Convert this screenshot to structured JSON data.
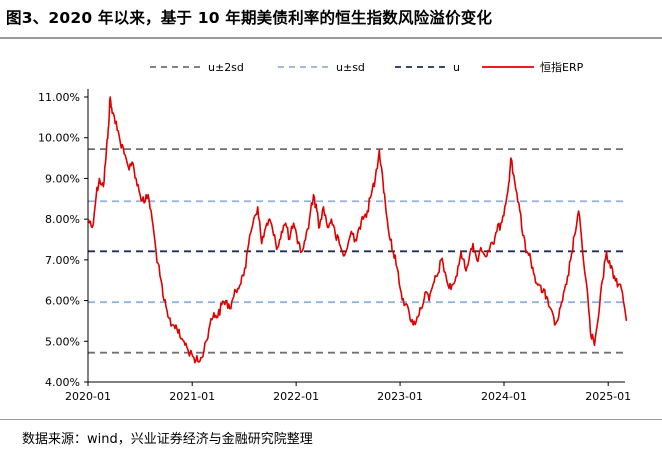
{
  "title": "图3、2020 年以来，基于 10 年期美债利率的恒生指数风险溢价变化",
  "source": "数据来源：wind，兴业证券经济与金融研究院整理",
  "colors": {
    "erp": "#e00000",
    "mean": "#1a2f5a",
    "sd1": "#8fb2e0",
    "sd2": "#707070"
  },
  "chart_data": {
    "type": "line",
    "title": "图3、2020 年以来，基于 10 年期美债利率的恒生指数风险溢价变化",
    "xlabel": "",
    "ylabel": "",
    "ylim": [
      4.0,
      11.0
    ],
    "xlim": [
      "2020-01",
      "2025-03"
    ],
    "yticks": [
      "4.00%",
      "5.00%",
      "6.00%",
      "7.00%",
      "8.00%",
      "9.00%",
      "10.00%",
      "11.00%"
    ],
    "xticks": [
      "2020-01",
      "2021-01",
      "2022-01",
      "2023-01",
      "2024-01",
      "2025-01"
    ],
    "legend_position": "top",
    "grid": false,
    "series": [
      {
        "name": "u±2sd",
        "style": "dashed",
        "color": "#707070",
        "values": [
          9.72,
          4.72
        ]
      },
      {
        "name": "u±sd",
        "style": "dashed",
        "color": "#8fb2e0",
        "values": [
          8.44,
          5.96
        ]
      },
      {
        "name": "u",
        "style": "dashed",
        "color": "#1a2f5a",
        "values": [
          7.21
        ]
      },
      {
        "name": "恒指ERP",
        "style": "solid",
        "color": "#e00000",
        "x": [
          "2020-01-02",
          "2020-01-16",
          "2020-01-30",
          "2020-02-10",
          "2020-02-24",
          "2020-03-05",
          "2020-03-12",
          "2020-03-19",
          "2020-03-26",
          "2020-04-09",
          "2020-04-23",
          "2020-05-07",
          "2020-05-21",
          "2020-06-04",
          "2020-06-18",
          "2020-07-02",
          "2020-07-16",
          "2020-07-30",
          "2020-08-13",
          "2020-08-27",
          "2020-09-10",
          "2020-09-24",
          "2020-10-08",
          "2020-10-22",
          "2020-11-05",
          "2020-11-19",
          "2020-12-03",
          "2020-12-17",
          "2021-01-07",
          "2021-01-21",
          "2021-02-04",
          "2021-02-18",
          "2021-03-04",
          "2021-03-18",
          "2021-04-01",
          "2021-04-15",
          "2021-04-29",
          "2021-05-13",
          "2021-05-27",
          "2021-06-10",
          "2021-06-24",
          "2021-07-08",
          "2021-07-22",
          "2021-08-05",
          "2021-08-19",
          "2021-09-02",
          "2021-09-16",
          "2021-09-30",
          "2021-10-14",
          "2021-10-28",
          "2021-11-11",
          "2021-11-25",
          "2021-12-09",
          "2021-12-23",
          "2022-01-06",
          "2022-01-20",
          "2022-02-03",
          "2022-02-17",
          "2022-03-03",
          "2022-03-15",
          "2022-03-24",
          "2022-04-07",
          "2022-04-21",
          "2022-05-05",
          "2022-05-19",
          "2022-06-02",
          "2022-06-16",
          "2022-06-30",
          "2022-07-14",
          "2022-07-28",
          "2022-08-11",
          "2022-08-25",
          "2022-09-08",
          "2022-09-22",
          "2022-10-06",
          "2022-10-20",
          "2022-10-31",
          "2022-11-10",
          "2022-11-24",
          "2022-12-08",
          "2022-12-22",
          "2023-01-05",
          "2023-01-19",
          "2023-02-02",
          "2023-02-16",
          "2023-03-02",
          "2023-03-16",
          "2023-03-30",
          "2023-04-13",
          "2023-04-27",
          "2023-05-11",
          "2023-05-25",
          "2023-06-08",
          "2023-06-22",
          "2023-07-06",
          "2023-07-20",
          "2023-08-03",
          "2023-08-17",
          "2023-08-31",
          "2023-09-14",
          "2023-09-28",
          "2023-10-12",
          "2023-10-26",
          "2023-11-09",
          "2023-11-23",
          "2023-12-07",
          "2023-12-21",
          "2024-01-04",
          "2024-01-18",
          "2024-01-25",
          "2024-02-08",
          "2024-02-22",
          "2024-03-07",
          "2024-03-21",
          "2024-04-04",
          "2024-04-18",
          "2024-05-02",
          "2024-05-16",
          "2024-05-30",
          "2024-06-13",
          "2024-06-27",
          "2024-07-11",
          "2024-07-25",
          "2024-08-08",
          "2024-08-22",
          "2024-09-05",
          "2024-09-19",
          "2024-10-03",
          "2024-10-17",
          "2024-10-31",
          "2024-11-14",
          "2024-11-28",
          "2024-12-12",
          "2024-12-26",
          "2025-01-09",
          "2025-01-23",
          "2025-02-06",
          "2025-02-20",
          "2025-03-06"
        ],
        "values": [
          8.0,
          7.8,
          8.6,
          9.0,
          8.8,
          9.6,
          10.2,
          11.0,
          10.6,
          10.4,
          9.9,
          9.6,
          9.3,
          9.4,
          9.0,
          8.6,
          8.4,
          8.6,
          8.0,
          7.2,
          6.6,
          6.0,
          5.6,
          5.4,
          5.4,
          5.1,
          5.0,
          4.8,
          4.6,
          4.5,
          4.6,
          5.0,
          5.4,
          5.7,
          5.6,
          5.9,
          6.0,
          5.8,
          6.1,
          6.3,
          6.6,
          6.8,
          7.6,
          8.0,
          8.3,
          7.4,
          7.8,
          8.0,
          7.6,
          7.3,
          7.7,
          7.9,
          7.5,
          7.9,
          7.4,
          7.2,
          7.5,
          8.0,
          8.6,
          8.2,
          7.8,
          8.3,
          7.8,
          8.0,
          7.6,
          7.4,
          7.1,
          7.3,
          7.7,
          7.5,
          7.8,
          8.0,
          8.2,
          8.6,
          9.0,
          9.7,
          9.1,
          8.4,
          7.6,
          7.2,
          6.8,
          6.2,
          5.9,
          5.7,
          5.4,
          5.6,
          5.8,
          6.2,
          6.0,
          6.4,
          6.6,
          7.0,
          6.7,
          6.3,
          6.4,
          6.6,
          7.2,
          6.8,
          7.0,
          7.4,
          7.0,
          7.3,
          7.1,
          7.2,
          7.4,
          7.7,
          7.9,
          8.3,
          8.9,
          9.5,
          8.9,
          8.4,
          7.6,
          7.2,
          7.0,
          6.6,
          6.4,
          6.2,
          6.1,
          5.8,
          5.4,
          5.6,
          6.0,
          6.4,
          7.0,
          7.6,
          8.2,
          7.2,
          6.4,
          5.2,
          4.9,
          5.6,
          6.5,
          7.2,
          6.8,
          6.6,
          6.4,
          6.2,
          5.5
        ]
      }
    ]
  }
}
